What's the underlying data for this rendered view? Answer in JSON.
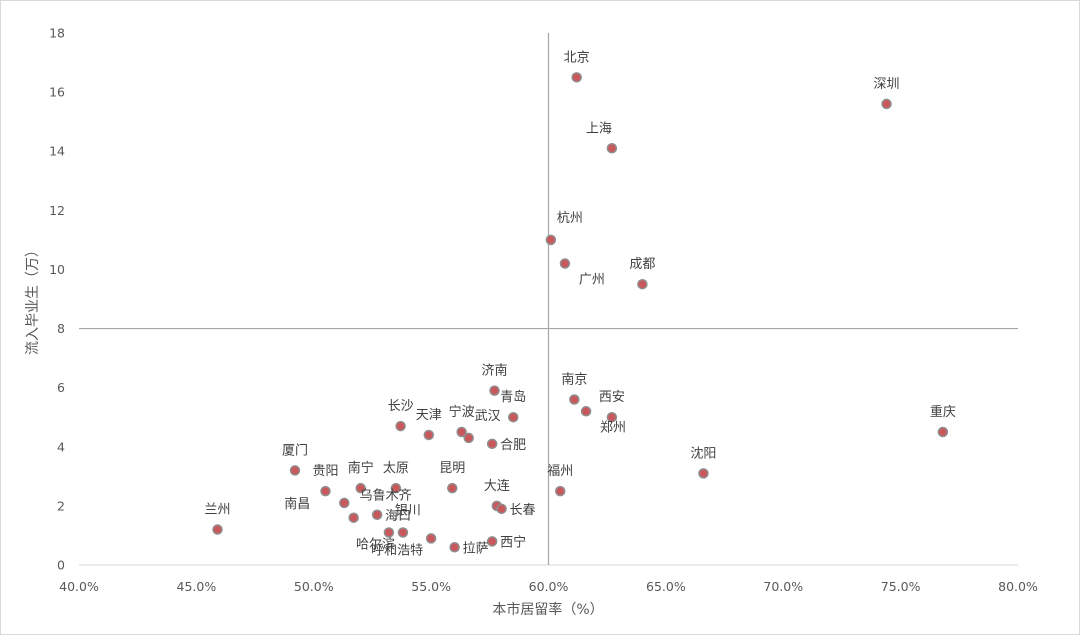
{
  "chart_data": {
    "type": "scatter",
    "xlabel": "本市居留率（%）",
    "ylabel": "流入毕业生（万）",
    "xlim": [
      0.4,
      0.8
    ],
    "ylim": [
      0,
      18
    ],
    "x_ticks": [
      "40.0%",
      "45.0%",
      "50.0%",
      "55.0%",
      "60.0%",
      "65.0%",
      "70.0%",
      "75.0%",
      "80.0%"
    ],
    "y_ticks": [
      "0",
      "2",
      "4",
      "6",
      "8",
      "10",
      "12",
      "14",
      "16",
      "18"
    ],
    "reference_lines": {
      "x": 0.6,
      "y": 8
    },
    "point_color": "#c9585c",
    "points": [
      {
        "name": "北京",
        "x": 0.612,
        "y": 16.5,
        "label_pos": "above"
      },
      {
        "name": "深圳",
        "x": 0.744,
        "y": 15.6,
        "label_pos": "above"
      },
      {
        "name": "上海",
        "x": 0.627,
        "y": 14.1,
        "label_pos": "above-left"
      },
      {
        "name": "杭州",
        "x": 0.601,
        "y": 11.0,
        "label_pos": "above-right"
      },
      {
        "name": "广州",
        "x": 0.607,
        "y": 10.2,
        "label_pos": "below-right"
      },
      {
        "name": "成都",
        "x": 0.64,
        "y": 9.5,
        "label_pos": "above"
      },
      {
        "name": "济南",
        "x": 0.577,
        "y": 5.9,
        "label_pos": "above"
      },
      {
        "name": "青岛",
        "x": 0.585,
        "y": 5.0,
        "label_pos": "above"
      },
      {
        "name": "南京",
        "x": 0.611,
        "y": 5.6,
        "label_pos": "above"
      },
      {
        "name": "西安",
        "x": 0.627,
        "y": 5.0,
        "label_pos": "above"
      },
      {
        "name": "郑州",
        "x": 0.616,
        "y": 5.2,
        "label_pos": "below-right"
      },
      {
        "name": "重庆",
        "x": 0.768,
        "y": 4.5,
        "label_pos": "above"
      },
      {
        "name": "长沙",
        "x": 0.537,
        "y": 4.7,
        "label_pos": "above"
      },
      {
        "name": "天津",
        "x": 0.549,
        "y": 4.4,
        "label_pos": "above"
      },
      {
        "name": "宁波",
        "x": 0.563,
        "y": 4.5,
        "label_pos": "above"
      },
      {
        "name": "武汉",
        "x": 0.566,
        "y": 4.3,
        "label_pos": "above-right"
      },
      {
        "name": "合肥",
        "x": 0.576,
        "y": 4.1,
        "label_pos": "right"
      },
      {
        "name": "厦门",
        "x": 0.492,
        "y": 3.2,
        "label_pos": "above"
      },
      {
        "name": "贵阳",
        "x": 0.505,
        "y": 2.5,
        "label_pos": "above"
      },
      {
        "name": "南宁",
        "x": 0.52,
        "y": 2.6,
        "label_pos": "above"
      },
      {
        "name": "太原",
        "x": 0.535,
        "y": 2.6,
        "label_pos": "above"
      },
      {
        "name": "昆明",
        "x": 0.559,
        "y": 2.6,
        "label_pos": "above"
      },
      {
        "name": "沈阳",
        "x": 0.666,
        "y": 3.1,
        "label_pos": "above"
      },
      {
        "name": "福州",
        "x": 0.605,
        "y": 2.5,
        "label_pos": "above"
      },
      {
        "name": "大连",
        "x": 0.578,
        "y": 2.0,
        "label_pos": "above"
      },
      {
        "name": "长春",
        "x": 0.58,
        "y": 1.9,
        "label_pos": "right"
      },
      {
        "name": "兰州",
        "x": 0.459,
        "y": 1.2,
        "label_pos": "above"
      },
      {
        "name": "南昌",
        "x": 0.513,
        "y": 2.1,
        "label_pos": "left"
      },
      {
        "name": "乌鲁木齐",
        "x": 0.517,
        "y": 1.6,
        "label_pos": "above-right"
      },
      {
        "name": "海口",
        "x": 0.527,
        "y": 1.7,
        "label_pos": "right"
      },
      {
        "name": "银川",
        "x": 0.532,
        "y": 1.1,
        "label_pos": "above-right"
      },
      {
        "name": "哈尔滨",
        "x": 0.538,
        "y": 1.1,
        "label_pos": "below-left"
      },
      {
        "name": "呼和浩特",
        "x": 0.55,
        "y": 0.9,
        "label_pos": "below-left"
      },
      {
        "name": "拉萨",
        "x": 0.56,
        "y": 0.6,
        "label_pos": "right"
      },
      {
        "name": "西宁",
        "x": 0.576,
        "y": 0.8,
        "label_pos": "right"
      }
    ]
  }
}
